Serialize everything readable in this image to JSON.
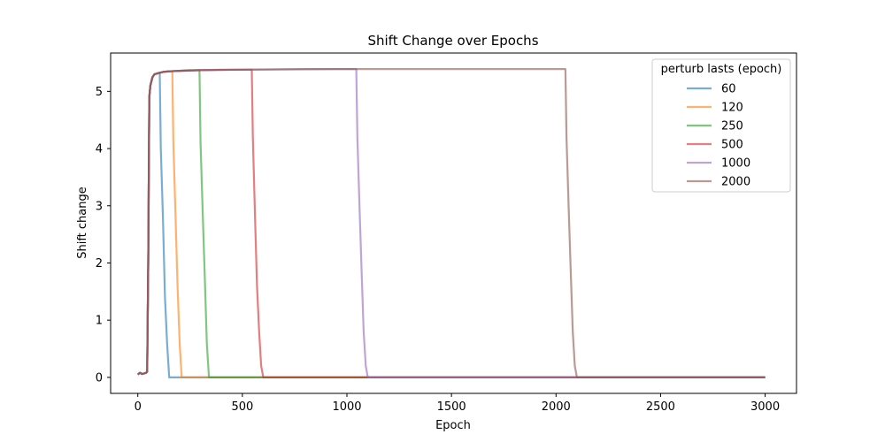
{
  "chart_data": {
    "type": "line",
    "title": "Shift Change over Epochs",
    "xlabel": "Epoch",
    "ylabel": "Shift change",
    "xlim": [
      -130,
      3150
    ],
    "ylim": [
      -0.28,
      5.67
    ],
    "xticks": [
      0,
      500,
      1000,
      1500,
      2000,
      2500,
      3000
    ],
    "yticks": [
      0,
      1,
      2,
      3,
      4,
      5
    ],
    "grid": false,
    "legend": {
      "title": "perturb lasts (epoch)",
      "position": "top-right"
    },
    "series": [
      {
        "name": "60",
        "color": "#1f77b4",
        "x": [
          0,
          10,
          20,
          30,
          40,
          45,
          50,
          55,
          60,
          70,
          80,
          90,
          100,
          105,
          110,
          120,
          130,
          140,
          150,
          160,
          170,
          180,
          200,
          250,
          300,
          500,
          1000,
          1500,
          2000,
          2500,
          3000
        ],
        "y": [
          0.05,
          0.08,
          0.06,
          0.07,
          0.08,
          0.1,
          2.0,
          4.9,
          5.1,
          5.25,
          5.3,
          5.31,
          5.32,
          5.32,
          4.0,
          2.8,
          1.4,
          0.6,
          0.0,
          0,
          0,
          0,
          0,
          0,
          0,
          0,
          0,
          0,
          0,
          0,
          0
        ]
      },
      {
        "name": "120",
        "color": "#ff7f0e",
        "x": [
          0,
          10,
          20,
          30,
          40,
          45,
          50,
          55,
          60,
          70,
          80,
          90,
          100,
          120,
          140,
          165,
          170,
          180,
          190,
          200,
          210,
          250,
          300,
          500,
          1000,
          1500,
          2000,
          2500,
          3000
        ],
        "y": [
          0.05,
          0.08,
          0.06,
          0.07,
          0.08,
          0.1,
          2.0,
          4.9,
          5.1,
          5.25,
          5.3,
          5.31,
          5.32,
          5.34,
          5.35,
          5.35,
          4.1,
          2.9,
          1.6,
          0.6,
          0.0,
          0,
          0,
          0,
          0,
          0,
          0,
          0,
          0
        ]
      },
      {
        "name": "250",
        "color": "#2ca02c",
        "x": [
          0,
          10,
          20,
          30,
          40,
          45,
          50,
          55,
          60,
          70,
          80,
          90,
          100,
          120,
          150,
          200,
          250,
          295,
          300,
          310,
          320,
          330,
          340,
          350,
          400,
          500,
          1000,
          1500,
          2000,
          2500,
          3000
        ],
        "y": [
          0.05,
          0.08,
          0.06,
          0.07,
          0.08,
          0.1,
          2.0,
          4.9,
          5.1,
          5.25,
          5.3,
          5.31,
          5.32,
          5.34,
          5.35,
          5.36,
          5.37,
          5.37,
          4.1,
          2.9,
          1.8,
          0.6,
          0.0,
          0,
          0,
          0,
          0,
          0,
          0,
          0,
          0
        ]
      },
      {
        "name": "500",
        "color": "#d62728",
        "x": [
          0,
          10,
          20,
          30,
          40,
          45,
          50,
          55,
          60,
          70,
          80,
          90,
          100,
          120,
          150,
          200,
          300,
          400,
          545,
          550,
          560,
          570,
          580,
          590,
          600,
          650,
          1000,
          1500,
          2000,
          2500,
          3000
        ],
        "y": [
          0.05,
          0.08,
          0.06,
          0.07,
          0.08,
          0.1,
          2.0,
          4.9,
          5.1,
          5.25,
          5.3,
          5.31,
          5.32,
          5.34,
          5.35,
          5.36,
          5.37,
          5.38,
          5.38,
          4.2,
          2.9,
          1.6,
          0.8,
          0.2,
          0.0,
          0,
          0,
          0,
          0,
          0,
          0
        ]
      },
      {
        "name": "1000",
        "color": "#9467bd",
        "x": [
          0,
          10,
          20,
          30,
          40,
          45,
          50,
          55,
          60,
          70,
          80,
          90,
          100,
          120,
          150,
          200,
          300,
          500,
          800,
          1045,
          1050,
          1060,
          1070,
          1080,
          1090,
          1100,
          1150,
          1500,
          2000,
          2500,
          3000
        ],
        "y": [
          0.05,
          0.08,
          0.06,
          0.07,
          0.08,
          0.1,
          2.0,
          4.9,
          5.1,
          5.25,
          5.3,
          5.31,
          5.32,
          5.34,
          5.35,
          5.36,
          5.37,
          5.38,
          5.39,
          5.39,
          4.2,
          3.0,
          1.9,
          0.8,
          0.2,
          0.0,
          0,
          0,
          0,
          0,
          0
        ]
      },
      {
        "name": "2000",
        "color": "#8c564b",
        "x": [
          0,
          10,
          20,
          30,
          40,
          45,
          50,
          55,
          60,
          70,
          80,
          90,
          100,
          120,
          150,
          200,
          300,
          500,
          1000,
          1500,
          2045,
          2050,
          2060,
          2070,
          2080,
          2090,
          2100,
          2150,
          2500,
          3000
        ],
        "y": [
          0.05,
          0.08,
          0.06,
          0.07,
          0.08,
          0.1,
          2.0,
          4.9,
          5.1,
          5.25,
          5.3,
          5.31,
          5.32,
          5.34,
          5.35,
          5.36,
          5.37,
          5.38,
          5.39,
          5.39,
          5.39,
          4.2,
          3.0,
          1.9,
          0.8,
          0.2,
          0.0,
          0,
          0,
          0
        ]
      }
    ]
  }
}
